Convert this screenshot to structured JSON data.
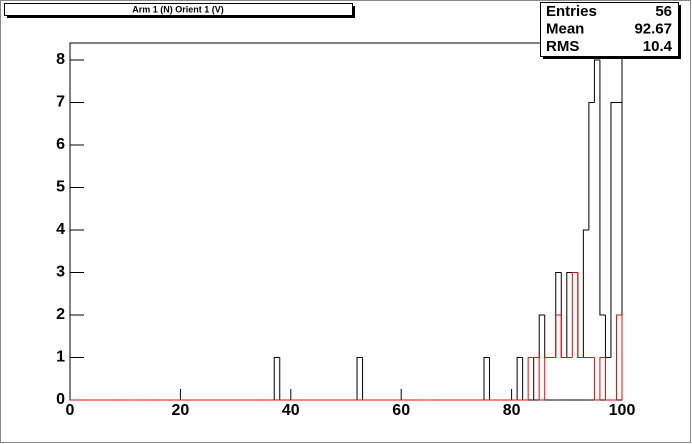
{
  "chart_data": {
    "type": "histogram",
    "title": "Arm 1 (N) Orient 1 (V)",
    "bins": [
      0,
      1,
      2,
      3,
      4,
      5,
      6,
      7,
      8,
      9,
      10,
      11,
      12,
      13,
      14,
      15,
      16,
      17,
      18,
      19,
      20,
      21,
      22,
      23,
      24,
      25,
      26,
      27,
      28,
      29,
      30,
      31,
      32,
      33,
      34,
      35,
      36,
      37,
      38,
      39,
      40,
      41,
      42,
      43,
      44,
      45,
      46,
      47,
      48,
      49,
      50,
      51,
      52,
      53,
      54,
      55,
      56,
      57,
      58,
      59,
      60,
      61,
      62,
      63,
      64,
      65,
      66,
      67,
      68,
      69,
      70,
      71,
      72,
      73,
      74,
      75,
      76,
      77,
      78,
      79,
      80,
      81,
      82,
      83,
      84,
      85,
      86,
      87,
      88,
      89,
      90,
      91,
      92,
      93,
      94,
      95,
      96,
      97,
      98,
      99,
      100
    ],
    "series": [
      {
        "color": "#000000",
        "values": [
          0,
          0,
          0,
          0,
          0,
          0,
          0,
          0,
          0,
          0,
          0,
          0,
          0,
          0,
          0,
          0,
          0,
          0,
          0,
          0,
          0,
          0,
          0,
          0,
          0,
          0,
          0,
          0,
          0,
          0,
          0,
          0,
          0,
          0,
          0,
          0,
          0,
          1,
          0,
          0,
          0,
          0,
          0,
          0,
          0,
          0,
          0,
          0,
          0,
          0,
          0,
          0,
          1,
          0,
          0,
          0,
          0,
          0,
          0,
          0,
          0,
          0,
          0,
          0,
          0,
          0,
          0,
          0,
          0,
          0,
          0,
          0,
          0,
          0,
          0,
          1,
          0,
          0,
          0,
          0,
          0,
          1,
          0,
          0,
          1,
          2,
          1,
          1,
          3,
          1,
          3,
          3,
          1,
          4,
          7,
          8,
          2,
          1,
          7,
          7
        ]
      },
      {
        "color": "#ff0000",
        "values": [
          0,
          0,
          0,
          0,
          0,
          0,
          0,
          0,
          0,
          0,
          0,
          0,
          0,
          0,
          0,
          0,
          0,
          0,
          0,
          0,
          0,
          0,
          0,
          0,
          0,
          0,
          0,
          0,
          0,
          0,
          0,
          0,
          0,
          0,
          0,
          0,
          0,
          0,
          0,
          0,
          0,
          0,
          0,
          0,
          0,
          0,
          0,
          0,
          0,
          0,
          0,
          0,
          0,
          0,
          0,
          0,
          0,
          0,
          0,
          0,
          0,
          0,
          0,
          0,
          0,
          0,
          0,
          0,
          0,
          0,
          0,
          0,
          0,
          0,
          0,
          0,
          0,
          0,
          0,
          0,
          0,
          0,
          0,
          1,
          1,
          0,
          1,
          1,
          2,
          1,
          1,
          3,
          1,
          1,
          1,
          0,
          1,
          0,
          0,
          2
        ]
      }
    ],
    "xlim": [
      0,
      100
    ],
    "xticks": [
      0,
      20,
      40,
      60,
      80,
      100
    ],
    "ylim": [
      0,
      8.4
    ],
    "yticks": [
      0,
      1,
      2,
      3,
      4,
      5,
      6,
      7,
      8
    ],
    "stats": [
      {
        "label": "Entries",
        "value": "56"
      },
      {
        "label": "Mean",
        "value": "92.67"
      },
      {
        "label": "RMS",
        "value": "10.4"
      }
    ]
  }
}
